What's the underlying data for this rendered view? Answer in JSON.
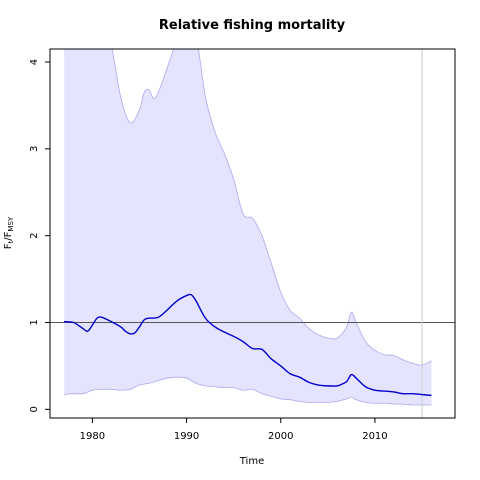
{
  "chart_data": {
    "type": "line",
    "title": "Relative fishing mortality",
    "xlabel": "Time",
    "ylabel_main": "F",
    "ylabel_sub1": "t",
    "ylabel_sep": "/F",
    "ylabel_sub2": "MSY",
    "xlim": [
      1975.5,
      2018.5
    ],
    "ylim": [
      -0.1,
      4.15
    ],
    "x_ticks": [
      1980,
      1990,
      2000,
      2010
    ],
    "y_ticks": [
      0,
      1,
      2,
      3,
      4
    ],
    "reference_line_y": 1,
    "vertical_line_x": 2015,
    "colors": {
      "median": "#0000cc",
      "band_fill": "#e4e4ff",
      "band_edge": "#aaaaee",
      "reference_line": "#555555",
      "vertical_line": "#cccccc"
    },
    "series": [
      {
        "role": "median",
        "x": [
          1977,
          1978,
          1979,
          1979.5,
          1980,
          1980.5,
          1981,
          1982,
          1983,
          1983.5,
          1984,
          1984.5,
          1985,
          1985.5,
          1986,
          1987,
          1988,
          1989,
          1990,
          1990.5,
          1991,
          1992,
          1993,
          1994,
          1995,
          1996,
          1997,
          1998,
          1999,
          2000,
          2001,
          2002,
          2003,
          2004,
          2005,
          2006,
          2006.5,
          2007,
          2007.5,
          2008,
          2009,
          2010,
          2011,
          2012,
          2013,
          2014,
          2015,
          2016
        ],
        "y": [
          1.01,
          1.0,
          0.93,
          0.9,
          0.97,
          1.05,
          1.06,
          1.01,
          0.95,
          0.9,
          0.87,
          0.88,
          0.95,
          1.03,
          1.05,
          1.06,
          1.15,
          1.25,
          1.31,
          1.32,
          1.25,
          1.05,
          0.95,
          0.89,
          0.84,
          0.78,
          0.7,
          0.69,
          0.58,
          0.5,
          0.41,
          0.37,
          0.31,
          0.28,
          0.27,
          0.27,
          0.29,
          0.32,
          0.4,
          0.36,
          0.26,
          0.22,
          0.21,
          0.2,
          0.18,
          0.18,
          0.17,
          0.16
        ]
      },
      {
        "role": "upper",
        "x": [
          1977,
          1978,
          1979,
          1980,
          1981,
          1982,
          1983,
          1984,
          1985,
          1985.5,
          1986,
          1986.5,
          1987,
          1988,
          1989,
          1990,
          1991,
          1992,
          1993,
          1994,
          1995,
          1996,
          1997,
          1998,
          1999,
          2000,
          2001,
          2002,
          2003,
          2004,
          2005,
          2006,
          2007,
          2007.5,
          2008,
          2009,
          2010,
          2011,
          2012,
          2013,
          2014,
          2015,
          2016
        ],
        "y": [
          4.3,
          4.35,
          4.4,
          4.5,
          4.5,
          4.2,
          3.6,
          3.3,
          3.45,
          3.65,
          3.68,
          3.58,
          3.65,
          3.95,
          4.25,
          4.4,
          4.3,
          3.6,
          3.2,
          2.95,
          2.65,
          2.25,
          2.2,
          2.0,
          1.68,
          1.35,
          1.14,
          1.05,
          0.93,
          0.86,
          0.82,
          0.82,
          0.95,
          1.12,
          1.0,
          0.78,
          0.68,
          0.63,
          0.62,
          0.57,
          0.53,
          0.51,
          0.56
        ]
      },
      {
        "role": "lower",
        "x": [
          1977,
          1978,
          1979,
          1980,
          1981,
          1982,
          1983,
          1984,
          1985,
          1986,
          1987,
          1988,
          1989,
          1990,
          1991,
          1992,
          1993,
          1994,
          1995,
          1996,
          1997,
          1998,
          1999,
          2000,
          2001,
          2002,
          2003,
          2004,
          2005,
          2006,
          2007,
          2007.5,
          2008,
          2009,
          2010,
          2011,
          2012,
          2013,
          2014,
          2015,
          2016
        ],
        "y": [
          0.17,
          0.18,
          0.18,
          0.22,
          0.23,
          0.23,
          0.22,
          0.23,
          0.28,
          0.3,
          0.33,
          0.36,
          0.37,
          0.36,
          0.3,
          0.27,
          0.26,
          0.25,
          0.25,
          0.22,
          0.23,
          0.18,
          0.15,
          0.12,
          0.11,
          0.09,
          0.08,
          0.08,
          0.08,
          0.09,
          0.12,
          0.14,
          0.11,
          0.08,
          0.07,
          0.07,
          0.06,
          0.06,
          0.05,
          0.05,
          0.05
        ]
      }
    ]
  }
}
